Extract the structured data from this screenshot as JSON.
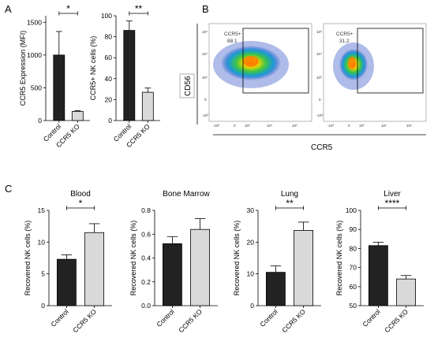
{
  "panels": {
    "a": "A",
    "b": "B",
    "c": "C"
  },
  "flow": {
    "x_label": "CCR5",
    "y_label": "CD56",
    "x_ticks": [
      "-10³",
      "0",
      "10³",
      "10⁴",
      "10⁵"
    ],
    "y_ticks": [
      "10⁵",
      "10⁴",
      "10³",
      "0",
      "-10³"
    ],
    "plots": [
      {
        "gate_name": "CCR5+",
        "gate_value": "88.1"
      },
      {
        "gate_name": "CCR5+",
        "gate_value": "31.2"
      }
    ]
  },
  "colors": {
    "control": "#222222",
    "ko": "#d9d9d9",
    "edge": "#000000"
  },
  "chart_data": [
    {
      "type": "bar",
      "title": "",
      "ylabel": "CCR5 Expression (MFI)",
      "categories": [
        "Control",
        "CCR5 KO"
      ],
      "values": [
        1000,
        140
      ],
      "errors": [
        360,
        12
      ],
      "ylim": [
        0,
        1600
      ],
      "yticks": [
        0,
        500,
        1000,
        1500
      ],
      "significance": "*",
      "colors": [
        "#222222",
        "#d9d9d9"
      ]
    },
    {
      "type": "bar",
      "title": "",
      "ylabel": "CCR5+ NK cells (%)",
      "categories": [
        "Control",
        "CCR5 KO"
      ],
      "values": [
        86,
        27
      ],
      "errors": [
        9,
        4
      ],
      "ylim": [
        0,
        100
      ],
      "yticks": [
        0,
        20,
        40,
        60,
        80,
        100
      ],
      "significance": "**",
      "colors": [
        "#222222",
        "#d9d9d9"
      ]
    },
    {
      "type": "bar",
      "title": "Blood",
      "ylabel": "Recovered NK cells (%)",
      "categories": [
        "Control",
        "CCR5 KO"
      ],
      "values": [
        7.3,
        11.5
      ],
      "errors": [
        0.7,
        1.4
      ],
      "ylim": [
        0,
        15
      ],
      "yticks": [
        0,
        5,
        10,
        15
      ],
      "significance": "*",
      "colors": [
        "#222222",
        "#d9d9d9"
      ]
    },
    {
      "type": "bar",
      "title": "Bone Marrow",
      "ylabel": "Recovered NK cells (%)",
      "categories": [
        "Control",
        "CCR5 KO"
      ],
      "values": [
        0.52,
        0.64
      ],
      "errors": [
        0.06,
        0.09
      ],
      "ylim": [
        0,
        0.8
      ],
      "yticks": [
        0.0,
        0.2,
        0.4,
        0.6,
        0.8
      ],
      "significance": "",
      "colors": [
        "#222222",
        "#d9d9d9"
      ]
    },
    {
      "type": "bar",
      "title": "Lung",
      "ylabel": "Recovered NK cells (%)",
      "categories": [
        "Control",
        "CCR5 KO"
      ],
      "values": [
        10.5,
        23.7
      ],
      "errors": [
        2.0,
        2.6
      ],
      "ylim": [
        0,
        30
      ],
      "yticks": [
        0,
        10,
        20,
        30
      ],
      "significance": "**",
      "colors": [
        "#222222",
        "#d9d9d9"
      ]
    },
    {
      "type": "bar",
      "title": "Liver",
      "ylabel": "Recovered NK cells (%)",
      "categories": [
        "Control",
        "CCR5 KO"
      ],
      "values": [
        81.5,
        64
      ],
      "errors": [
        1.8,
        1.8
      ],
      "ylim": [
        50,
        100
      ],
      "yticks": [
        50,
        60,
        70,
        80,
        90,
        100
      ],
      "significance": "****",
      "colors": [
        "#222222",
        "#d9d9d9"
      ]
    }
  ]
}
